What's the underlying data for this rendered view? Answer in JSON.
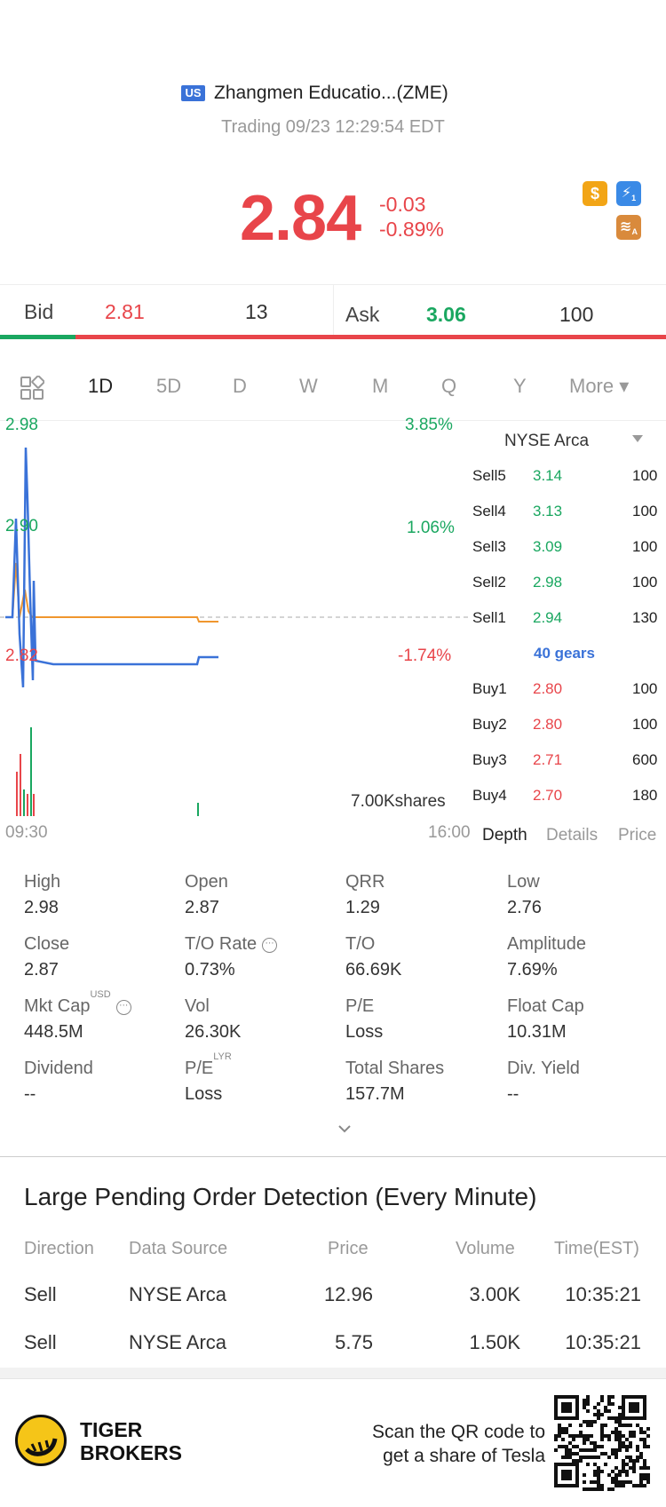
{
  "header": {
    "market_flag": "US",
    "title": "Zhangmen Educatio...(ZME)",
    "subtitle": "Trading 09/23 12:29:54 EDT",
    "price": "2.84",
    "change": "-0.03",
    "change_pct": "-0.89%",
    "badge_dollar": "$",
    "badge_flash": "⚡",
    "badge_layers": "≋",
    "badge_flash_sub": "1",
    "badge_layers_sub": "A"
  },
  "quote": {
    "bid_label": "Bid",
    "bid_price": "2.81",
    "bid_size": "13",
    "ask_label": "Ask",
    "ask_price": "3.06",
    "ask_size": "100",
    "bid_fraction": 0.113
  },
  "tabs": {
    "items": [
      "1D",
      "5D",
      "D",
      "W",
      "M",
      "Q",
      "Y"
    ],
    "more": "More ▾",
    "active": "1D"
  },
  "chart": {
    "y_top": "2.98",
    "y_mid": "2.90",
    "y_bottom": "2.82",
    "pct_top": "3.85%",
    "pct_mid": "1.06%",
    "pct_bottom": "-1.74%",
    "volume_label": "7.00Kshares",
    "x_start": "09:30",
    "x_end": "16:00",
    "colors": {
      "price_line": "#3a72d8",
      "avg_line": "#f0962e",
      "up": "#1aa760",
      "down": "#e8454a"
    }
  },
  "orderbook": {
    "exchange": "NYSE Arca",
    "sells": [
      {
        "label": "Sell5",
        "price": "3.14",
        "size": "100"
      },
      {
        "label": "Sell4",
        "price": "3.13",
        "size": "100"
      },
      {
        "label": "Sell3",
        "price": "3.09",
        "size": "100"
      },
      {
        "label": "Sell2",
        "price": "2.98",
        "size": "100"
      },
      {
        "label": "Sell1",
        "price": "2.94",
        "size": "130"
      }
    ],
    "gears": "40 gears",
    "buys": [
      {
        "label": "Buy1",
        "price": "2.80",
        "size": "100"
      },
      {
        "label": "Buy2",
        "price": "2.80",
        "size": "100"
      },
      {
        "label": "Buy3",
        "price": "2.71",
        "size": "600"
      },
      {
        "label": "Buy4",
        "price": "2.70",
        "size": "180"
      }
    ],
    "tabs": [
      "Depth",
      "Details",
      "Price"
    ]
  },
  "stats": [
    {
      "label": "High",
      "value": "2.98"
    },
    {
      "label": "Open",
      "value": "2.87"
    },
    {
      "label": "QRR",
      "value": "1.29"
    },
    {
      "label": "Low",
      "value": "2.76"
    },
    {
      "label": "Close",
      "value": "2.87"
    },
    {
      "label": "T/O Rate",
      "value": "0.73%"
    },
    {
      "label": "T/O",
      "value": "66.69K"
    },
    {
      "label": "Amplitude",
      "value": "7.69%"
    },
    {
      "label": "Mkt Cap",
      "value": "448.5M",
      "sup": "USD"
    },
    {
      "label": "Vol",
      "value": "26.30K"
    },
    {
      "label": "P/E",
      "value": "Loss"
    },
    {
      "label": "Float Cap",
      "value": "10.31M"
    },
    {
      "label": "Dividend",
      "value": "--"
    },
    {
      "label": "P/E",
      "value": "Loss",
      "sup": "LYR"
    },
    {
      "label": "Total Shares",
      "value": "157.7M"
    },
    {
      "label": "Div. Yield",
      "value": "--"
    }
  ],
  "large_orders": {
    "title": "Large Pending Order Detection (Every Minute)",
    "columns": [
      "Direction",
      "Data Source",
      "Price",
      "Volume",
      "Time(EST)"
    ],
    "rows": [
      {
        "direction": "Sell",
        "source": "NYSE Arca",
        "price": "12.96",
        "volume": "3.00K",
        "time": "10:35:21"
      },
      {
        "direction": "Sell",
        "source": "NYSE Arca",
        "price": "5.75",
        "volume": "1.50K",
        "time": "10:35:21"
      }
    ]
  },
  "footer": {
    "brand_line1": "TIGER",
    "brand_line2": "BROKERS",
    "promo_line1": "Scan the QR code to",
    "promo_line2": "get a share of Tesla"
  }
}
